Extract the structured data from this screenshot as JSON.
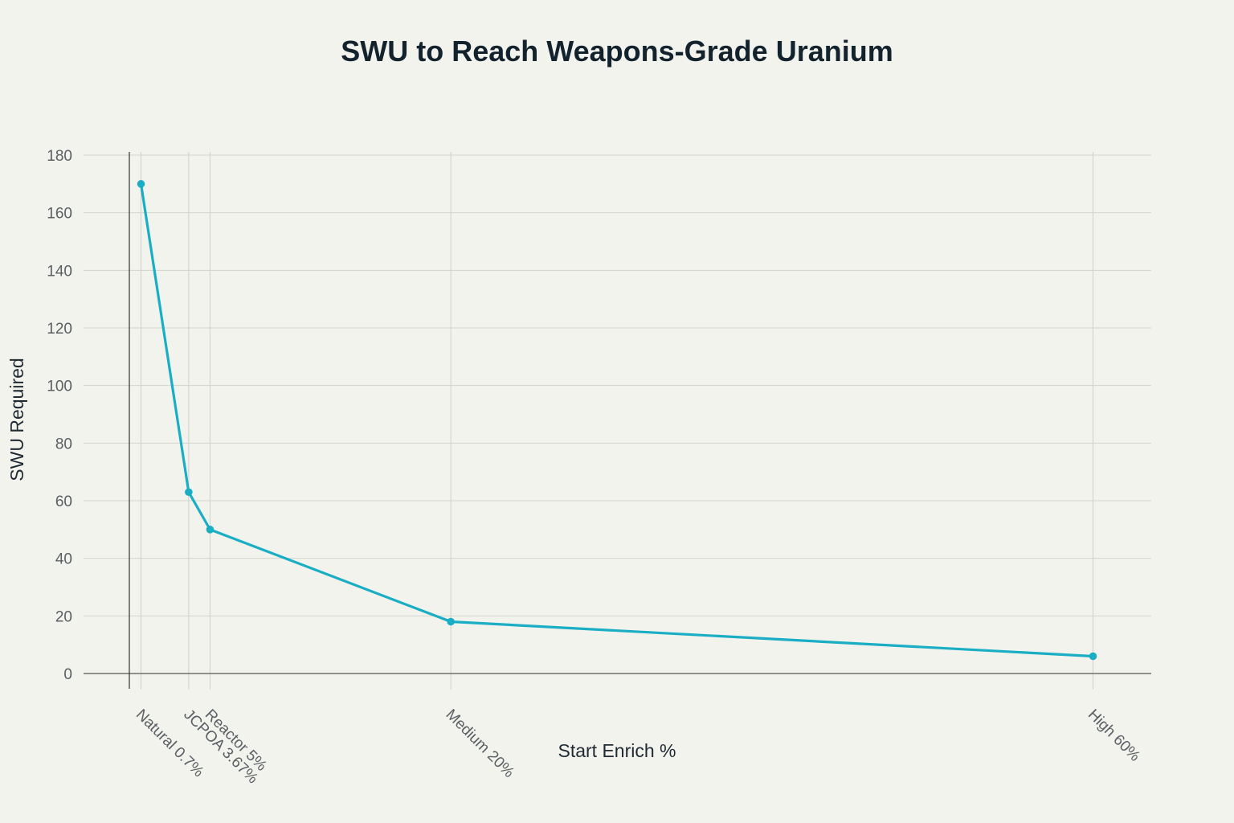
{
  "chart_data": {
    "type": "line",
    "title": "SWU to Reach Weapons-Grade Uranium",
    "xlabel": "Start Enrich %",
    "ylabel": "SWU Required",
    "ylim": [
      0,
      180
    ],
    "yticks": [
      0,
      20,
      40,
      60,
      80,
      100,
      120,
      140,
      160,
      180
    ],
    "grid": true,
    "categories": [
      "Natural 0.7%",
      "JCPOA 3.67%",
      "Reactor 5%",
      "Medium 20%",
      "High 60%"
    ],
    "x": [
      0.7,
      3.67,
      5,
      20,
      60
    ],
    "series": [
      {
        "values": [
          170,
          63,
          50,
          18,
          6
        ],
        "color": "#1aaec4"
      }
    ]
  }
}
